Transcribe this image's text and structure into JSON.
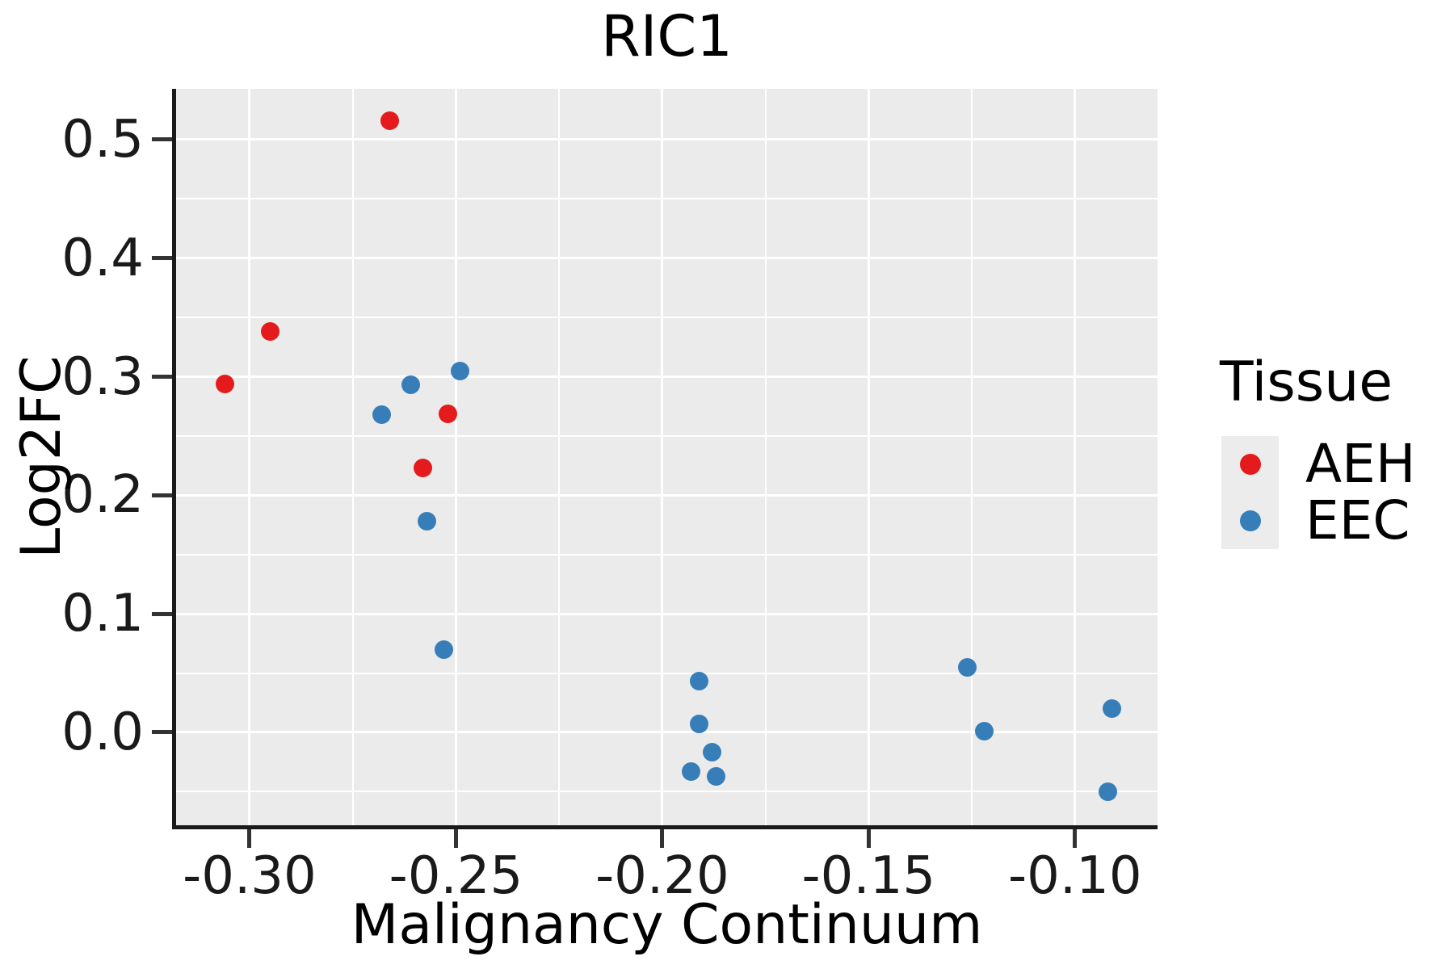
{
  "figure": {
    "background": "#FFFFFF"
  },
  "chart_data": {
    "type": "scatter",
    "title": "RIC1",
    "xlabel": "Malignancy Continuum",
    "ylabel": "Log2FC",
    "xlim": [
      -0.3178,
      -0.08
    ],
    "ylim": [
      -0.0784,
      0.5429
    ],
    "grid": true,
    "x_ticks": [
      {
        "v": -0.3,
        "label": "-0.30"
      },
      {
        "v": -0.25,
        "label": "-0.25"
      },
      {
        "v": -0.2,
        "label": "-0.20"
      },
      {
        "v": -0.15,
        "label": "-0.15"
      },
      {
        "v": -0.1,
        "label": "-0.10"
      }
    ],
    "x_minor": [
      -0.275,
      -0.225,
      -0.175,
      -0.125
    ],
    "y_ticks": [
      {
        "v": 0.5,
        "label": "0.5"
      },
      {
        "v": 0.4,
        "label": "0.4"
      },
      {
        "v": 0.3,
        "label": "0.3"
      },
      {
        "v": 0.2,
        "label": "0.2"
      },
      {
        "v": 0.1,
        "label": "0.1"
      },
      {
        "v": 0.0,
        "label": "0.0"
      }
    ],
    "y_minor": [
      0.45,
      0.35,
      0.25,
      0.15,
      0.05,
      -0.05
    ],
    "style": {
      "panel_bg": "#EBEBEB",
      "grid_color": "#FFFFFF",
      "aeh_color": "#E41A1C",
      "eec_color": "#377EB8"
    },
    "legend": {
      "title": "Tissue",
      "position": "right",
      "entries": [
        {
          "label": "AEH",
          "color": "#E41A1C"
        },
        {
          "label": "EEC",
          "color": "#377EB8"
        }
      ]
    },
    "series": [
      {
        "name": "AEH",
        "color": "#E41A1C",
        "points": [
          [
            -0.266,
            0.516
          ],
          [
            -0.295,
            0.338
          ],
          [
            -0.306,
            0.294
          ],
          [
            -0.252,
            0.269
          ],
          [
            -0.258,
            0.223
          ]
        ]
      },
      {
        "name": "EEC",
        "color": "#377EB8",
        "points": [
          [
            -0.268,
            0.268
          ],
          [
            -0.261,
            0.293
          ],
          [
            -0.249,
            0.305
          ],
          [
            -0.257,
            0.178
          ],
          [
            -0.253,
            0.07
          ],
          [
            -0.191,
            0.043
          ],
          [
            -0.191,
            0.007
          ],
          [
            -0.188,
            -0.017
          ],
          [
            -0.193,
            -0.033
          ],
          [
            -0.187,
            -0.037
          ],
          [
            -0.126,
            0.055
          ],
          [
            -0.122,
            0.001
          ],
          [
            -0.091,
            0.02
          ],
          [
            -0.092,
            -0.05
          ]
        ]
      }
    ]
  }
}
